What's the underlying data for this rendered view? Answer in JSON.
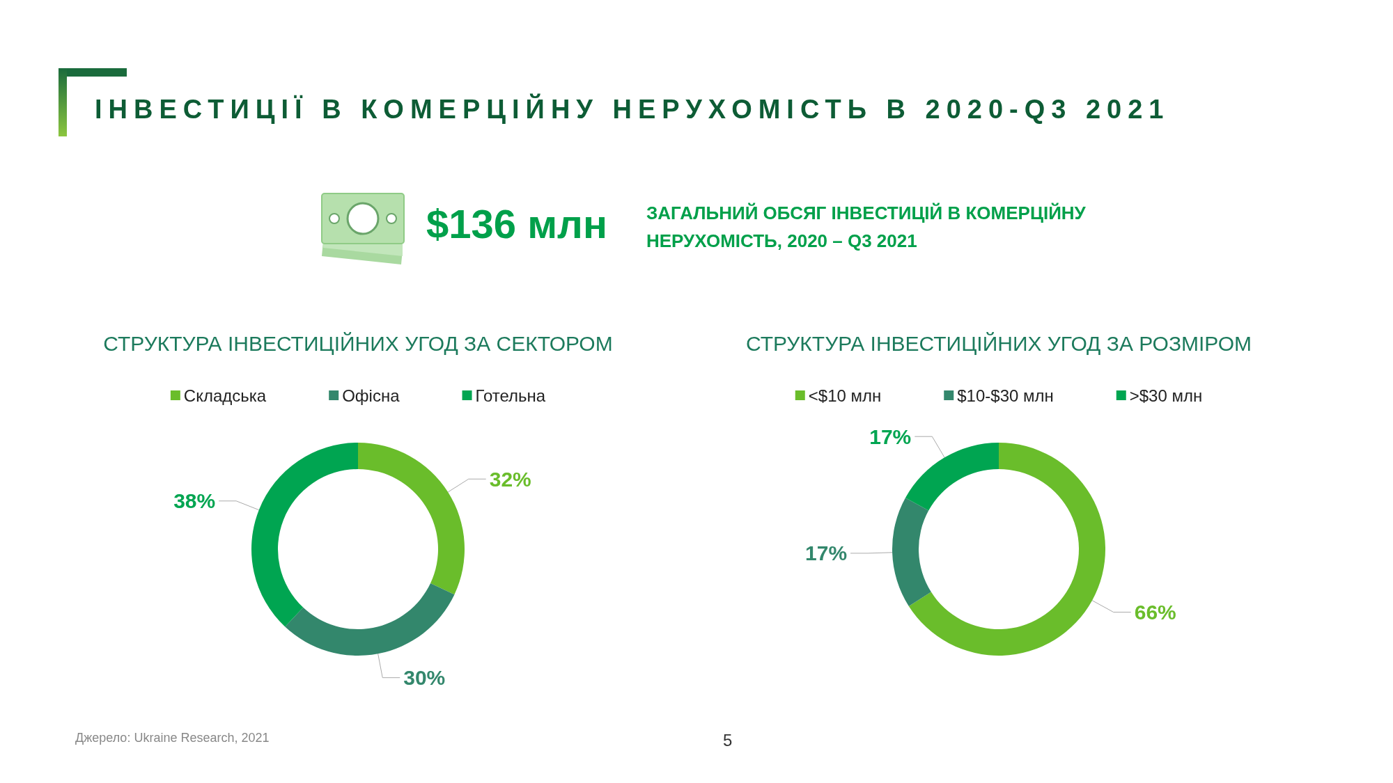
{
  "chart_data": [
    {
      "type": "other",
      "title": "ІНВЕСТИЦІЇ В КОМЕРЦІЙНУ НЕРУХОМІСТЬ В 2020-Q3 2021",
      "annotations": [
        "$136 млн",
        "ЗАГАЛЬНИЙ ОБСЯГ ІНВЕСТИЦІЙ В КОМЕРЦІЙНУ НЕРУХОМІСТЬ, 2020 – Q3 2021"
      ]
    },
    {
      "type": "donut",
      "title": "СТРУКТУРА ІНВЕСТИЦІЙНИХ УГОД ЗА СЕКТОРОМ",
      "categories": [
        "Складська",
        "Офісна",
        "Готельна"
      ],
      "values": [
        32,
        30,
        38
      ],
      "colors": [
        "#6abd2b",
        "#33876c",
        "#00a551"
      ],
      "value_labels": [
        "32%",
        "30%",
        "38%"
      ],
      "legend": "top"
    },
    {
      "type": "donut",
      "title": "СТРУКТУРА ІНВЕСТИЦІЙНИХ УГОД ЗА РОЗМІРОМ",
      "categories": [
        "<$10 млн",
        "$10-$30 млн",
        ">$30 млн"
      ],
      "values": [
        66,
        17,
        17
      ],
      "colors": [
        "#6abd2b",
        "#33876c",
        "#00a551"
      ],
      "value_labels": [
        "66%",
        "17%",
        "17%"
      ],
      "legend": "top",
      "annotations": [
        "Джерело: Ukraine Research, 2021",
        "5"
      ]
    }
  ]
}
